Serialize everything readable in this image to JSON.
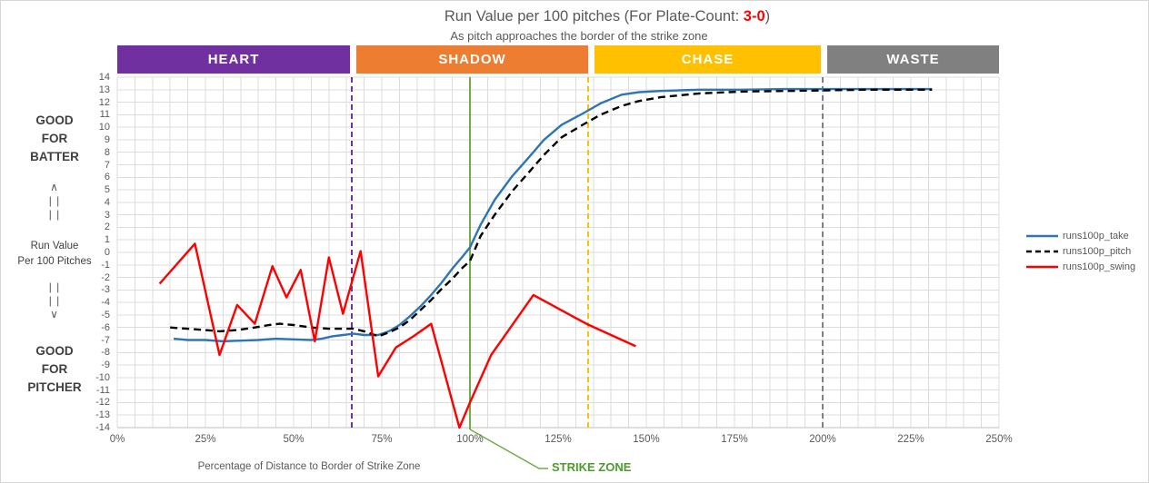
{
  "header": {
    "title_prefix": "Run Value per 100 pitches (For Plate-Count: ",
    "title_count": "3-0",
    "title_suffix": ")",
    "subtitle": "As pitch approaches the border of the strike zone"
  },
  "zones": [
    {
      "label": "HEART",
      "color": "#7030A0",
      "start_pct": 0,
      "end_pct": 66
    },
    {
      "label": "SHADOW",
      "color": "#ED7D31",
      "start_pct": 67.8,
      "end_pct": 133.5
    },
    {
      "label": "CHASE",
      "color": "#FFC000",
      "start_pct": 135.3,
      "end_pct": 199.5
    },
    {
      "label": "WASTE",
      "color": "#808080",
      "start_pct": 201.3,
      "end_pct": 250
    }
  ],
  "side": {
    "good_batter": [
      "GOOD",
      "FOR",
      "BATTER"
    ],
    "up_arrow": [
      "∧",
      "| |",
      "| |"
    ],
    "axis_caption": [
      "Run Value",
      "Per 100 Pitches"
    ],
    "down_arrow": [
      "| |",
      "| |",
      "∨"
    ],
    "good_pitcher": [
      "GOOD",
      "FOR",
      "PITCHER"
    ]
  },
  "legend": [
    {
      "label": "runs100p_take",
      "color": "#2E75B6",
      "dash": false
    },
    {
      "label": "runs100p_pitch",
      "color": "#000000",
      "dash": true
    },
    {
      "label": "runs100p_swing",
      "color": "#FF0000",
      "dash": false
    }
  ],
  "strike_zone_label": "STRIKE ZONE",
  "chart_data": {
    "type": "line",
    "title": "Run Value per 100 pitches (For Plate-Count: 3-0)",
    "subtitle": "As pitch approaches the border of the strike zone",
    "xlabel": "Percentage of Distance to Border of Strike Zone",
    "ylabel": "Run Value Per 100 Pitches",
    "xlim": [
      0,
      250
    ],
    "ylim": [
      -14,
      14
    ],
    "x_ticks": [
      "0%",
      "25%",
      "50%",
      "75%",
      "100%",
      "125%",
      "150%",
      "175%",
      "200%",
      "225%",
      "250%"
    ],
    "x_tick_values": [
      0,
      25,
      50,
      75,
      100,
      125,
      150,
      175,
      200,
      225,
      250
    ],
    "y_ticks": [
      14,
      13,
      12,
      11,
      10,
      9,
      8,
      7,
      6,
      5,
      4,
      3,
      2,
      1,
      0,
      -1,
      -2,
      -3,
      -4,
      -5,
      -6,
      -7,
      -8,
      -9,
      -10,
      -11,
      -12,
      -13,
      -14
    ],
    "minor_x_grid_step_pct": 5,
    "grid": true,
    "legend_position": "right",
    "reference_lines": [
      {
        "x": 66.5,
        "color": "#7030A0",
        "dash": true,
        "name": "heart-shadow-boundary"
      },
      {
        "x": 100,
        "color": "#70AD47",
        "dash": false,
        "name": "strike-zone"
      },
      {
        "x": 133.5,
        "color": "#FFC000",
        "dash": true,
        "name": "shadow-chase-boundary"
      },
      {
        "x": 200,
        "color": "#808080",
        "dash": true,
        "name": "chase-waste-boundary"
      }
    ],
    "series": [
      {
        "name": "runs100p_take",
        "color": "#2E75B6",
        "dash": false,
        "points": [
          [
            16,
            -6.9
          ],
          [
            20,
            -7
          ],
          [
            25,
            -7
          ],
          [
            30,
            -7.1
          ],
          [
            35,
            -7.05
          ],
          [
            40,
            -7
          ],
          [
            45,
            -6.9
          ],
          [
            50,
            -6.95
          ],
          [
            55,
            -7
          ],
          [
            58,
            -6.9
          ],
          [
            61,
            -6.7
          ],
          [
            64,
            -6.6
          ],
          [
            67,
            -6.5
          ],
          [
            70,
            -6.6
          ],
          [
            74,
            -6.6
          ],
          [
            77,
            -6.3
          ],
          [
            80,
            -5.8
          ],
          [
            83,
            -5.1
          ],
          [
            86,
            -4.3
          ],
          [
            89,
            -3.4
          ],
          [
            92,
            -2.4
          ],
          [
            95,
            -1.3
          ],
          [
            98,
            -0.3
          ],
          [
            100,
            0.4
          ],
          [
            103,
            2.2
          ],
          [
            107,
            4.2
          ],
          [
            112,
            6.1
          ],
          [
            117,
            7.7
          ],
          [
            121,
            9
          ],
          [
            126,
            10.2
          ],
          [
            132,
            11.1
          ],
          [
            137,
            11.9
          ],
          [
            143,
            12.6
          ],
          [
            148,
            12.8
          ],
          [
            154,
            12.9
          ],
          [
            165,
            13
          ],
          [
            177,
            13
          ],
          [
            189,
            13.05
          ],
          [
            201,
            13.05
          ],
          [
            213,
            13.05
          ],
          [
            225,
            13.05
          ],
          [
            231,
            13.05
          ]
        ]
      },
      {
        "name": "runs100p_pitch",
        "color": "#000000",
        "dash": true,
        "points": [
          [
            15,
            -6
          ],
          [
            20,
            -6.1
          ],
          [
            25,
            -6.2
          ],
          [
            29,
            -6.3
          ],
          [
            34,
            -6.2
          ],
          [
            39,
            -6
          ],
          [
            43,
            -5.8
          ],
          [
            46,
            -5.7
          ],
          [
            50,
            -5.8
          ],
          [
            55,
            -6
          ],
          [
            60,
            -6.1
          ],
          [
            64,
            -6.1
          ],
          [
            67,
            -6.1
          ],
          [
            70,
            -6.3
          ],
          [
            74,
            -6.7
          ],
          [
            77,
            -6.4
          ],
          [
            80,
            -6
          ],
          [
            83,
            -5.4
          ],
          [
            86,
            -4.6
          ],
          [
            89,
            -3.8
          ],
          [
            92,
            -2.9
          ],
          [
            95,
            -2.1
          ],
          [
            98,
            -1.2
          ],
          [
            100,
            -0.7
          ],
          [
            103,
            1.3
          ],
          [
            107,
            3
          ],
          [
            112,
            4.9
          ],
          [
            117,
            6.5
          ],
          [
            121,
            7.8
          ],
          [
            126,
            9.2
          ],
          [
            132,
            10.2
          ],
          [
            137,
            11
          ],
          [
            143,
            11.7
          ],
          [
            148,
            12.1
          ],
          [
            154,
            12.4
          ],
          [
            165,
            12.7
          ],
          [
            177,
            12.85
          ],
          [
            189,
            12.9
          ],
          [
            201,
            12.95
          ],
          [
            213,
            13
          ],
          [
            225,
            13
          ],
          [
            231,
            13
          ]
        ]
      },
      {
        "name": "runs100p_swing",
        "color": "#FF0000",
        "dash": false,
        "points": [
          [
            12,
            -2.5
          ],
          [
            22,
            0.7
          ],
          [
            29,
            -8.2
          ],
          [
            34,
            -4.2
          ],
          [
            39,
            -5.7
          ],
          [
            44,
            -1.1
          ],
          [
            48,
            -3.6
          ],
          [
            52,
            -1.4
          ],
          [
            56,
            -7.1
          ],
          [
            60,
            -0.4
          ],
          [
            64,
            -4.9
          ],
          [
            69,
            0.1
          ],
          [
            74,
            -9.9
          ],
          [
            79,
            -7.6
          ],
          [
            84,
            -6.7
          ],
          [
            89,
            -5.7
          ],
          [
            97,
            -14
          ],
          [
            100,
            -12
          ],
          [
            106,
            -8.2
          ],
          [
            118,
            -3.4
          ],
          [
            133,
            -5.7
          ],
          [
            147,
            -7.5
          ]
        ]
      }
    ],
    "annotations": [
      {
        "text": "STRIKE ZONE",
        "x": 100,
        "color": "#70AD47"
      }
    ]
  }
}
